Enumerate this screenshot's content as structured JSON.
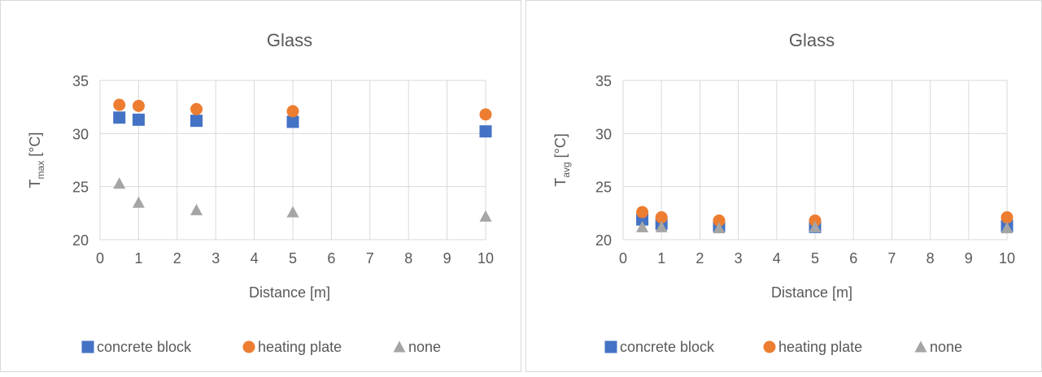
{
  "colors": {
    "concrete_block": "#4472C4",
    "heating_plate": "#ED7D31",
    "none": "#A5A5A5",
    "gridline": "#d9d9d9",
    "text": "#595959"
  },
  "chart_data": [
    {
      "type": "scatter",
      "title": "Glass",
      "xlabel": "Distance [m]",
      "ylabel": {
        "main": "T",
        "sub": "max",
        "unit": " [°C]"
      },
      "xlim": [
        0,
        10
      ],
      "ylim": [
        20,
        35
      ],
      "xticks": [
        0,
        1,
        2,
        3,
        4,
        5,
        6,
        7,
        8,
        9,
        10
      ],
      "yticks": [
        20,
        25,
        30,
        35
      ],
      "grid": true,
      "legend_position": "bottom",
      "series": [
        {
          "name": "concrete block",
          "marker": "square",
          "color": "#4472C4",
          "x": [
            0.5,
            1,
            2.5,
            5,
            10
          ],
          "y": [
            31.5,
            31.3,
            31.2,
            31.1,
            30.2
          ]
        },
        {
          "name": "heating plate",
          "marker": "circle",
          "color": "#ED7D31",
          "x": [
            0.5,
            1,
            2.5,
            5,
            10
          ],
          "y": [
            32.7,
            32.6,
            32.3,
            32.1,
            31.8
          ]
        },
        {
          "name": "none",
          "marker": "triangle",
          "color": "#A5A5A5",
          "x": [
            0.5,
            1,
            2.5,
            5,
            10
          ],
          "y": [
            25.3,
            23.5,
            22.8,
            22.6,
            22.2
          ]
        }
      ]
    },
    {
      "type": "scatter",
      "title": "Glass",
      "xlabel": "Distance [m]",
      "ylabel": {
        "main": "T",
        "sub": "avg",
        "unit": " [°C]"
      },
      "xlim": [
        0,
        10
      ],
      "ylim": [
        20,
        35
      ],
      "xticks": [
        0,
        1,
        2,
        3,
        4,
        5,
        6,
        7,
        8,
        9,
        10
      ],
      "yticks": [
        20,
        25,
        30,
        35
      ],
      "grid": true,
      "legend_position": "bottom",
      "series": [
        {
          "name": "concrete block",
          "marker": "square",
          "color": "#4472C4",
          "x": [
            0.5,
            1,
            2.5,
            5,
            10
          ],
          "y": [
            21.9,
            21.5,
            21.3,
            21.2,
            21.3
          ]
        },
        {
          "name": "heating plate",
          "marker": "circle",
          "color": "#ED7D31",
          "x": [
            0.5,
            1,
            2.5,
            5,
            10
          ],
          "y": [
            22.6,
            22.1,
            21.8,
            21.8,
            22.1
          ]
        },
        {
          "name": "none",
          "marker": "triangle",
          "color": "#A5A5A5",
          "x": [
            0.5,
            1,
            2.5,
            5,
            10
          ],
          "y": [
            21.2,
            21.2,
            21.1,
            21.2,
            21.1
          ]
        }
      ]
    }
  ]
}
